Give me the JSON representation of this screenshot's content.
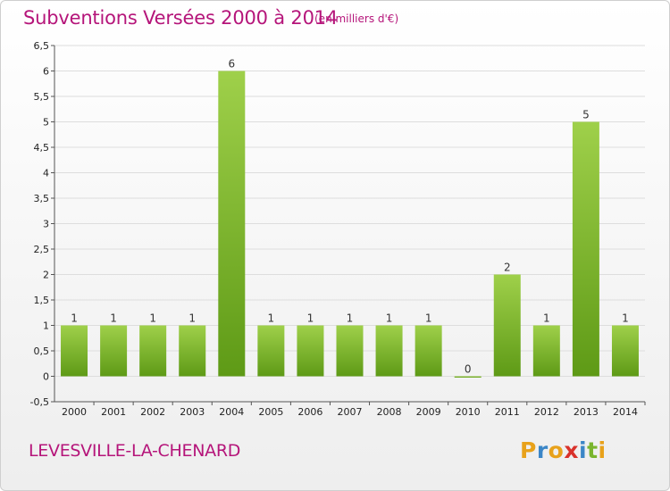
{
  "header": {
    "title": "Subventions Versées 2000 à 2014",
    "subtitle": "(en milliers d'€)"
  },
  "footer": {
    "commune": "LEVESVILLE-LA-CHENARD",
    "logo_text": "Proxiti"
  },
  "colors": {
    "title": "#b5157a",
    "bar_top": "#9fd04a",
    "bar_bottom": "#5e9a16",
    "grid": "#dddddd"
  },
  "chart_data": {
    "type": "bar",
    "title": "Subventions Versées 2000 à 2014",
    "subtitle": "(en milliers d'€)",
    "xlabel": "",
    "ylabel": "",
    "categories": [
      "2000",
      "2001",
      "2002",
      "2003",
      "2004",
      "2005",
      "2006",
      "2007",
      "2008",
      "2009",
      "2010",
      "2011",
      "2012",
      "2013",
      "2014"
    ],
    "values": [
      1,
      1,
      1,
      1,
      6,
      1,
      1,
      1,
      1,
      1,
      0,
      2,
      1,
      5,
      1
    ],
    "data_labels": [
      "1",
      "1",
      "1",
      "1",
      "6",
      "1",
      "1",
      "1",
      "1",
      "1",
      "0",
      "2",
      "1",
      "5",
      "1"
    ],
    "ylim": [
      -0.5,
      6.5
    ],
    "yticks": [
      -0.5,
      0,
      0.5,
      1,
      1.5,
      2,
      2.5,
      3,
      3.5,
      4,
      4.5,
      5,
      5.5,
      6,
      6.5
    ],
    "ytick_labels": [
      "-0,5",
      "0",
      "0,5",
      "1",
      "1,5",
      "2",
      "2,5",
      "3",
      "3,5",
      "4",
      "4,5",
      "5",
      "5,5",
      "6",
      "6,5"
    ],
    "grid": true,
    "legend": "none"
  }
}
